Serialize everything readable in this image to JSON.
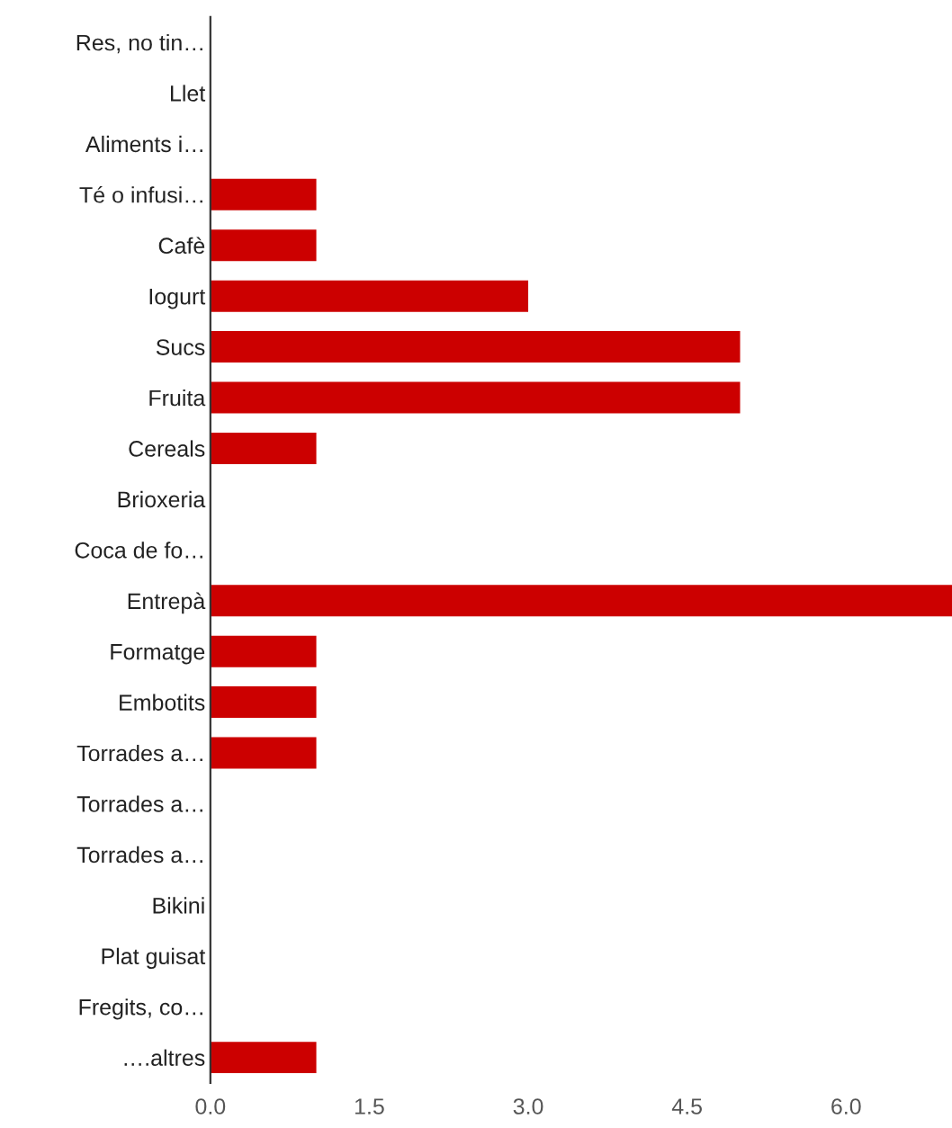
{
  "chart_data": {
    "type": "bar",
    "orientation": "horizontal",
    "categories": [
      "Res, no tin…",
      "Llet",
      "Aliments i…",
      "Té o infusi…",
      "Cafè",
      "Iogurt",
      "Sucs",
      "Fruita",
      "Cereals",
      "Brioxeria",
      "Coca de fo…",
      "Entrepà",
      "Formatge",
      "Embotits",
      "Torrades a…",
      "Torrades a…",
      "Torrades a…",
      "Bikini",
      "Plat guisat",
      "Fregits, co…",
      "….altres"
    ],
    "values": [
      0,
      0,
      0,
      1,
      1,
      3,
      5,
      5,
      1,
      0,
      0,
      7,
      1,
      1,
      1,
      0,
      0,
      0,
      0,
      0,
      1
    ],
    "color": "#cc0000",
    "xlim": [
      0,
      7
    ],
    "xticks": [
      {
        "value": 0,
        "label": "0.0"
      },
      {
        "value": 1.5,
        "label": "1.5"
      },
      {
        "value": 3,
        "label": "3.0"
      },
      {
        "value": 4.5,
        "label": "4.5"
      },
      {
        "value": 6,
        "label": "6.0"
      }
    ],
    "grid": false
  }
}
